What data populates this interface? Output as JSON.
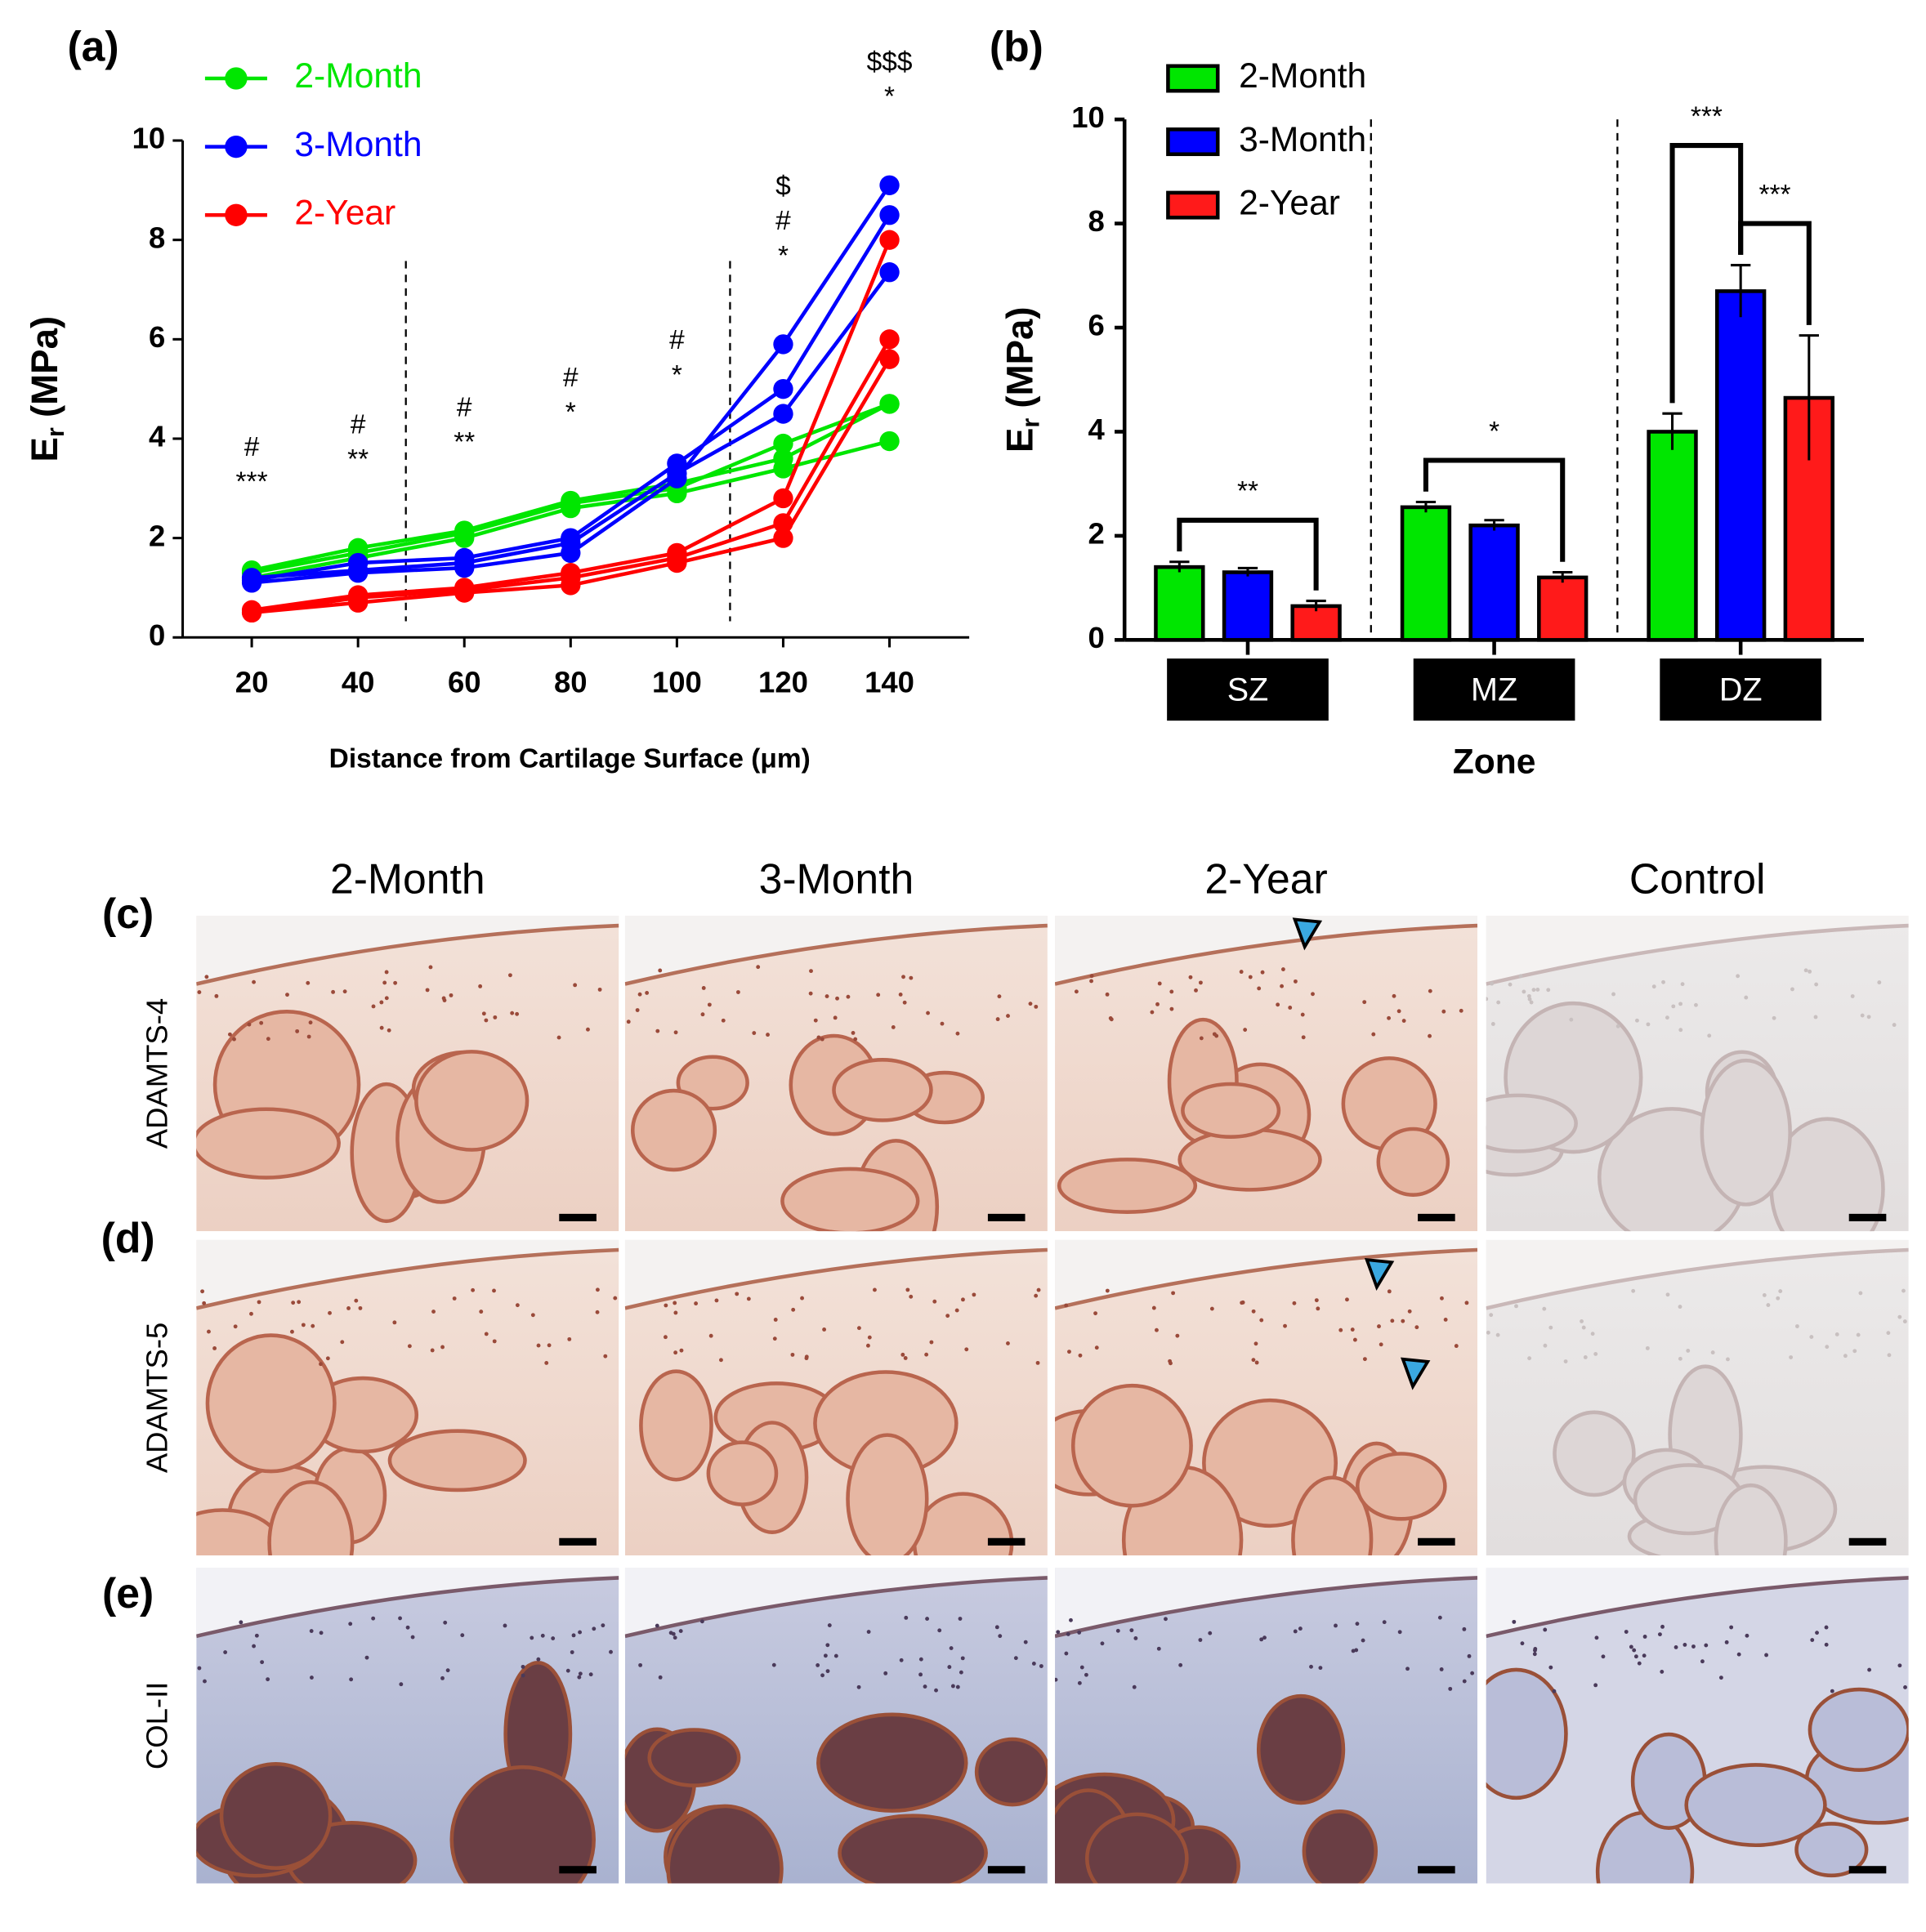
{
  "chart_data": [
    {
      "type": "line",
      "panel_label": "(a)",
      "xlabel": "Distance from Cartilage Surface (μm)",
      "ylabel": "E",
      "ylabel_sub": "r",
      "ylabel_unit": "(MPa)",
      "x": [
        20,
        40,
        60,
        80,
        100,
        120,
        140
      ],
      "xlim": [
        7,
        155
      ],
      "xticks": [
        20,
        40,
        60,
        80,
        100,
        120,
        140
      ],
      "ylim": [
        0,
        10
      ],
      "yticks": [
        0,
        2,
        4,
        6,
        8,
        10
      ],
      "dividers": [
        49,
        110
      ],
      "legend": "upper left",
      "series": [
        {
          "name": "2-Month",
          "color": "#00e600",
          "values": [
            [
              1.3,
              1.7,
              2.1,
              2.7,
              3.0,
              3.9,
              4.7
            ],
            [
              1.2,
              1.6,
              2.0,
              2.6,
              2.9,
              3.4,
              3.95
            ],
            [
              1.35,
              1.8,
              2.15,
              2.75,
              3.1,
              3.6,
              4.7
            ]
          ]
        },
        {
          "name": "3-Month",
          "color": "#0000ff",
          "values": [
            [
              1.1,
              1.3,
              1.4,
              1.7,
              3.2,
              5.9,
              9.1
            ],
            [
              1.15,
              1.5,
              1.6,
              2.0,
              3.5,
              5.0,
              8.5
            ],
            [
              1.2,
              1.35,
              1.5,
              1.9,
              3.3,
              4.5,
              7.35
            ]
          ]
        },
        {
          "name": "2-Year",
          "color": "#ff0000",
          "values": [
            [
              0.5,
              0.7,
              0.9,
              1.05,
              1.5,
              2.0,
              5.6
            ],
            [
              0.5,
              0.8,
              0.95,
              1.2,
              1.6,
              2.3,
              6.0
            ],
            [
              0.55,
              0.85,
              1.0,
              1.3,
              1.7,
              2.8,
              8.0
            ]
          ]
        }
      ],
      "annotations": [
        {
          "x": 20,
          "text": [
            "#",
            "***"
          ]
        },
        {
          "x": 40,
          "text": [
            "#",
            "**"
          ]
        },
        {
          "x": 60,
          "text": [
            "#",
            "**"
          ]
        },
        {
          "x": 80,
          "text": [
            "#",
            "*"
          ]
        },
        {
          "x": 100,
          "text": [
            "#",
            "*"
          ]
        },
        {
          "x": 120,
          "text": [
            "$",
            "#",
            "*"
          ]
        },
        {
          "x": 140,
          "text": [
            "$$$",
            "*"
          ]
        }
      ]
    },
    {
      "type": "bar",
      "panel_label": "(b)",
      "xlabel": "Zone",
      "ylabel": "E",
      "ylabel_sub": "r",
      "ylabel_unit": "(MPa)",
      "categories": [
        "SZ",
        "MZ",
        "DZ"
      ],
      "ylim": [
        0,
        10
      ],
      "yticks": [
        0,
        2,
        4,
        6,
        8,
        10
      ],
      "legend": "upper left",
      "series": [
        {
          "name": "2-Month",
          "color": "#00e600",
          "values": [
            1.4,
            2.55,
            4.0
          ],
          "errors": [
            0.1,
            0.1,
            0.35
          ]
        },
        {
          "name": "3-Month",
          "color": "#0000ff",
          "values": [
            1.3,
            2.2,
            6.7
          ],
          "errors": [
            0.08,
            0.1,
            0.5
          ]
        },
        {
          "name": "2-Year",
          "color": "#ff1a1a",
          "values": [
            0.65,
            1.2,
            4.65
          ],
          "errors": [
            0.1,
            0.1,
            1.2
          ]
        }
      ],
      "brackets": [
        {
          "category": 0,
          "from": 0,
          "to": 2,
          "text": "**"
        },
        {
          "category": 1,
          "from": 0,
          "to": 2,
          "text": "*"
        },
        {
          "category": 2,
          "from": 0,
          "to": 1,
          "text": "***"
        },
        {
          "category": 2,
          "from": 1,
          "to": 2,
          "text": "***"
        }
      ]
    }
  ],
  "histology": {
    "columns": [
      "2-Month",
      "3-Month",
      "2-Year",
      "Control"
    ],
    "rows": [
      {
        "panel": "(c)",
        "stain": "ADAMTS-4"
      },
      {
        "panel": "(d)",
        "stain": "ADAMTS-5"
      },
      {
        "panel": "(e)",
        "stain": "COL-II"
      }
    ]
  }
}
